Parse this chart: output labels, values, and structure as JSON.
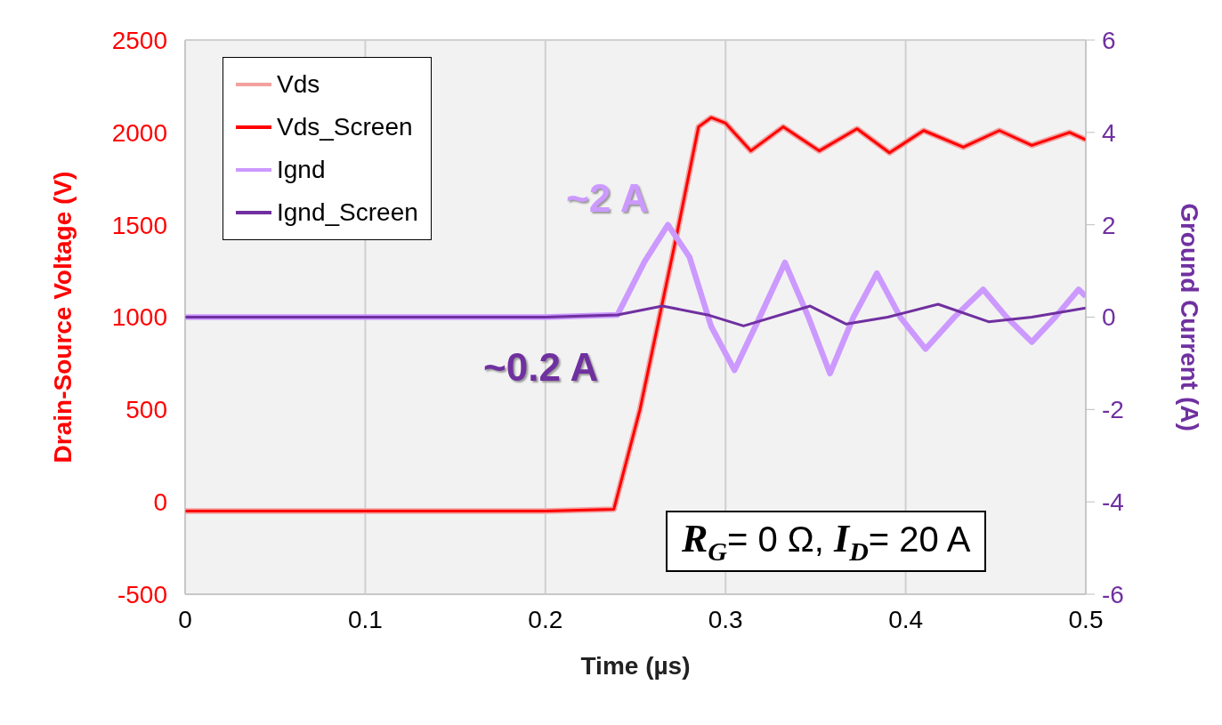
{
  "chart_data": {
    "type": "line",
    "xlabel": "Time (µs)",
    "ylabel": "Drain-Source Voltage (V)",
    "y2label": "Ground Current (A)",
    "xlim": [
      0,
      0.5
    ],
    "xticks": [
      0,
      0.1,
      0.2,
      0.3,
      0.4,
      0.5
    ],
    "ylim": [
      -500,
      2500
    ],
    "yticks": [
      -500,
      0,
      500,
      1000,
      1500,
      2000,
      2500
    ],
    "y2lim": [
      -6,
      6
    ],
    "y2ticks": [
      -6,
      -4,
      -2,
      0,
      2,
      4,
      6
    ],
    "grid": true,
    "legend": "top left",
    "marker": "none",
    "line_style": "solid",
    "annotations": [
      "~2 A",
      "~0.2 A",
      "R$_{G}$= 0 Ω, I$_{D}$= 20 A"
    ],
    "series": [
      {
        "name": "Vds",
        "color": "#f4a0a0",
        "x": [
          0,
          0.05,
          0.1,
          0.15,
          0.2,
          0.238,
          0.2525,
          0.273,
          0.285,
          0.292,
          0.3,
          0.314,
          0.332,
          0.352,
          0.373,
          0.391,
          0.41,
          0.432,
          0.452,
          0.47,
          0.491,
          0.5
        ],
        "values": [
          -50,
          -50,
          -50,
          -50,
          -50,
          -40,
          500,
          1450,
          2030,
          2080,
          2050,
          1900,
          2030,
          1900,
          2020,
          1890,
          2010,
          1920,
          2010,
          1930,
          2000,
          1960
        ]
      },
      {
        "name": "Vds_Screen",
        "color": "#ff0000",
        "x": [
          0,
          0.05,
          0.1,
          0.15,
          0.2,
          0.238,
          0.2525,
          0.273,
          0.285,
          0.292,
          0.3,
          0.314,
          0.332,
          0.352,
          0.373,
          0.391,
          0.41,
          0.432,
          0.452,
          0.47,
          0.491,
          0.5
        ],
        "values": [
          -50,
          -50,
          -50,
          -50,
          -50,
          -40,
          500,
          1450,
          2030,
          2080,
          2050,
          1900,
          2030,
          1900,
          2020,
          1890,
          2010,
          1920,
          2010,
          1930,
          2000,
          1960
        ]
      },
      {
        "name": "Ignd",
        "color": "#cc99ff",
        "axis": "y2",
        "x": [
          0,
          0.1,
          0.2,
          0.24,
          0.255,
          0.268,
          0.28,
          0.292,
          0.305,
          0.319,
          0.333,
          0.346,
          0.358,
          0.371,
          0.384,
          0.397,
          0.411,
          0.427,
          0.443,
          0.456,
          0.47,
          0.483,
          0.496,
          0.5
        ],
        "values": [
          0,
          0,
          0,
          0.05,
          1.2,
          2.0,
          1.3,
          -0.2,
          -1.15,
          0,
          1.18,
          0,
          -1.22,
          0,
          0.95,
          0,
          -0.69,
          0,
          0.6,
          0,
          -0.54,
          0,
          0.6,
          0.45
        ]
      },
      {
        "name": "Ignd_Screen",
        "color": "#7030a0",
        "axis": "y2",
        "x": [
          0,
          0.1,
          0.2,
          0.24,
          0.265,
          0.29,
          0.31,
          0.347,
          0.367,
          0.39,
          0.418,
          0.446,
          0.47,
          0.5
        ],
        "values": [
          0,
          0,
          0,
          0.05,
          0.24,
          0.05,
          -0.19,
          0.24,
          -0.15,
          0,
          0.28,
          -0.1,
          0,
          0.2
        ]
      }
    ]
  }
}
